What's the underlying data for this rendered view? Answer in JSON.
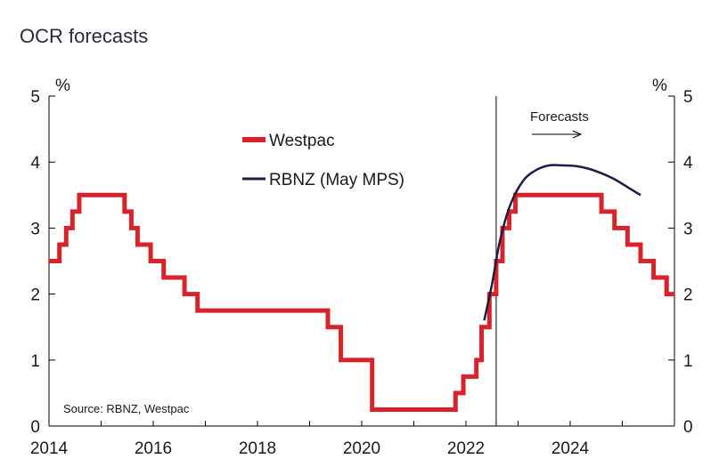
{
  "title": "OCR forecasts",
  "chart_data": {
    "type": "line",
    "title": "OCR forecasts",
    "xlim": [
      2014,
      2026
    ],
    "ylim": [
      0,
      5
    ],
    "x_ticks": [
      2014,
      2016,
      2018,
      2020,
      2022,
      2024
    ],
    "x_tick_labels": [
      "2014",
      "2016",
      "2018",
      "2020",
      "2022",
      "2024"
    ],
    "y_ticks": [
      0,
      1,
      2,
      3,
      4,
      5
    ],
    "y_tick_labels": [
      "0",
      "1",
      "2",
      "3",
      "4",
      "5"
    ],
    "left_unit": "%",
    "right_unit": "%",
    "forecast_start": 2022.58,
    "forecast_label": "Forecasts",
    "source": "Source: RBNZ, Westpac",
    "colors": {
      "westpac": "#d8232a",
      "rbnz": "#1c1c48",
      "axis": "#000000"
    },
    "series": [
      {
        "name": "Westpac",
        "kind": "step",
        "points": [
          [
            2014.0,
            2.5
          ],
          [
            2014.2,
            2.75
          ],
          [
            2014.33,
            3.0
          ],
          [
            2014.45,
            3.25
          ],
          [
            2014.58,
            3.5
          ],
          [
            2015.45,
            3.25
          ],
          [
            2015.58,
            3.0
          ],
          [
            2015.7,
            2.75
          ],
          [
            2015.95,
            2.5
          ],
          [
            2016.2,
            2.25
          ],
          [
            2016.6,
            2.0
          ],
          [
            2016.85,
            1.75
          ],
          [
            2019.35,
            1.5
          ],
          [
            2019.6,
            1.0
          ],
          [
            2020.2,
            0.25
          ],
          [
            2021.8,
            0.5
          ],
          [
            2021.95,
            0.75
          ],
          [
            2022.2,
            1.0
          ],
          [
            2022.3,
            1.5
          ],
          [
            2022.45,
            2.0
          ],
          [
            2022.58,
            2.5
          ],
          [
            2022.7,
            3.0
          ],
          [
            2022.83,
            3.25
          ],
          [
            2022.95,
            3.5
          ],
          [
            2024.6,
            3.25
          ],
          [
            2024.85,
            3.0
          ],
          [
            2025.1,
            2.75
          ],
          [
            2025.35,
            2.5
          ],
          [
            2025.6,
            2.25
          ],
          [
            2025.85,
            2.0
          ],
          [
            2026.0,
            2.0
          ]
        ]
      },
      {
        "name": "RBNZ (May MPS)",
        "kind": "line",
        "points": [
          [
            2022.35,
            1.6
          ],
          [
            2022.5,
            2.15
          ],
          [
            2022.65,
            2.8
          ],
          [
            2022.85,
            3.35
          ],
          [
            2023.1,
            3.72
          ],
          [
            2023.35,
            3.88
          ],
          [
            2023.6,
            3.95
          ],
          [
            2023.85,
            3.95
          ],
          [
            2024.1,
            3.94
          ],
          [
            2024.35,
            3.9
          ],
          [
            2024.6,
            3.83
          ],
          [
            2024.85,
            3.74
          ],
          [
            2025.1,
            3.62
          ],
          [
            2025.35,
            3.5
          ]
        ]
      }
    ]
  }
}
